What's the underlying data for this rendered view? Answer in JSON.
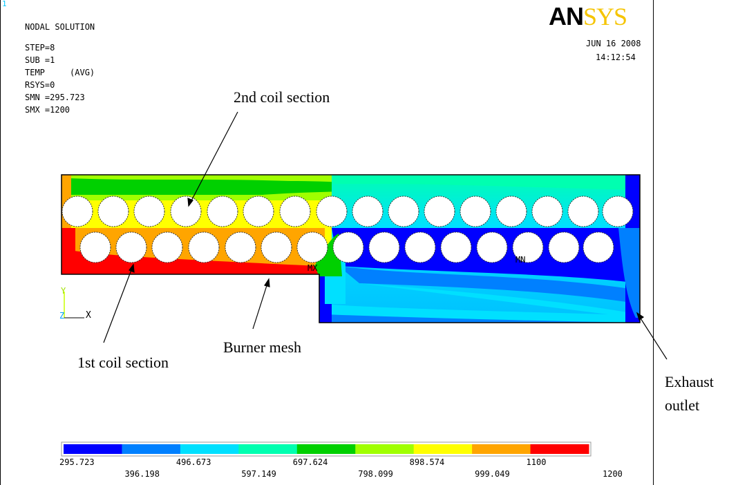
{
  "header": {
    "window_number": "1",
    "title": "NODAL SOLUTION",
    "lines": [
      "STEP=8",
      "SUB =1",
      "TEMP     (AVG)",
      "RSYS=0",
      "SMN =295.723",
      "SMX =1200"
    ]
  },
  "logo": {
    "prefix": "AN",
    "suffix": "SYS"
  },
  "datetime": {
    "date": "JUN 16 2008",
    "time": "14:12:54"
  },
  "annotations": {
    "coil2": "2nd coil section",
    "coil1": "1st coil section",
    "burner": "Burner mesh",
    "exhaust_line1": "Exhaust",
    "exhaust_line2": "outlet"
  },
  "markers": {
    "mx": "MX",
    "mn": "MN"
  },
  "triad": {
    "y": "Y",
    "z": "Z",
    "x": "X"
  },
  "legend": {
    "colors": [
      "#0000ff",
      "#0080ff",
      "#00e0ff",
      "#00ffb0",
      "#00d000",
      "#a0ff00",
      "#ffff00",
      "#ffa500",
      "#ff0000"
    ],
    "values_top": [
      "295.723",
      "496.673",
      "697.624",
      "898.574",
      "1100"
    ],
    "values_bottom": [
      "396.198",
      "597.149",
      "798.099",
      "999.049",
      "1200"
    ]
  }
}
